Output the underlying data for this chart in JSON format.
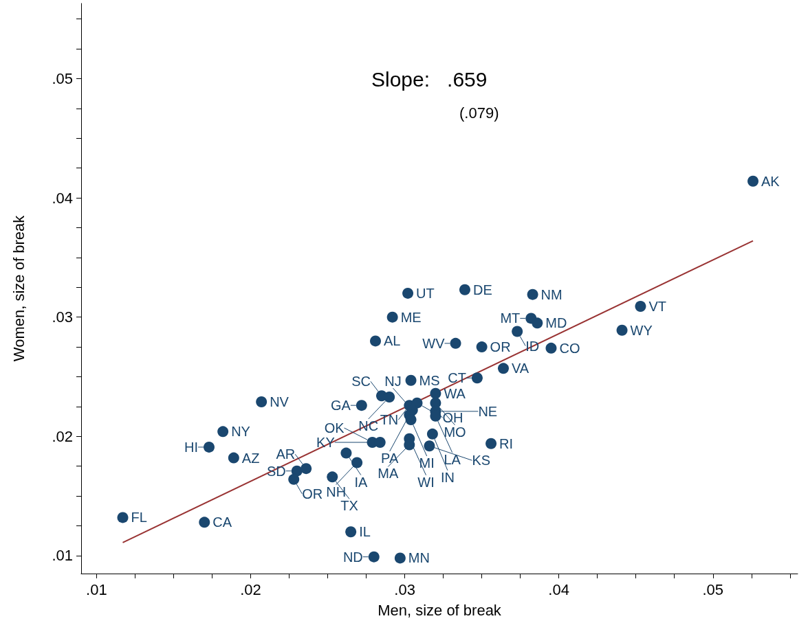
{
  "chart_data": {
    "type": "scatter",
    "xlabel": "Men, size of break",
    "ylabel": "Women, size of break",
    "annotations": [
      "Slope:   .659",
      "(.079)"
    ],
    "xlim": [
      0.009,
      0.0555
    ],
    "ylim": [
      0.0085,
      0.0563
    ],
    "xticks": [
      {
        "value": 0.01,
        "label": ".01"
      },
      {
        "value": 0.0125,
        "label": null
      },
      {
        "value": 0.015,
        "label": null
      },
      {
        "value": 0.0175,
        "label": null
      },
      {
        "value": 0.02,
        "label": ".02"
      },
      {
        "value": 0.0225,
        "label": null
      },
      {
        "value": 0.025,
        "label": null
      },
      {
        "value": 0.0275,
        "label": null
      },
      {
        "value": 0.03,
        "label": ".03"
      },
      {
        "value": 0.0325,
        "label": null
      },
      {
        "value": 0.035,
        "label": null
      },
      {
        "value": 0.0375,
        "label": null
      },
      {
        "value": 0.04,
        "label": ".04"
      },
      {
        "value": 0.0425,
        "label": null
      },
      {
        "value": 0.045,
        "label": null
      },
      {
        "value": 0.0475,
        "label": null
      },
      {
        "value": 0.05,
        "label": ".05"
      },
      {
        "value": 0.0525,
        "label": null
      },
      {
        "value": 0.055,
        "label": null
      }
    ],
    "yticks": [
      {
        "value": 0.01,
        "label": ".01"
      },
      {
        "value": 0.0125,
        "label": null
      },
      {
        "value": 0.015,
        "label": null
      },
      {
        "value": 0.0175,
        "label": null
      },
      {
        "value": 0.02,
        "label": ".02"
      },
      {
        "value": 0.0225,
        "label": null
      },
      {
        "value": 0.025,
        "label": null
      },
      {
        "value": 0.0275,
        "label": null
      },
      {
        "value": 0.03,
        "label": ".03"
      },
      {
        "value": 0.0325,
        "label": null
      },
      {
        "value": 0.035,
        "label": null
      },
      {
        "value": 0.0375,
        "label": null
      },
      {
        "value": 0.04,
        "label": ".04"
      },
      {
        "value": 0.0425,
        "label": null
      },
      {
        "value": 0.045,
        "label": null
      },
      {
        "value": 0.0475,
        "label": null
      },
      {
        "value": 0.05,
        "label": ".05"
      },
      {
        "value": 0.0525,
        "label": null
      },
      {
        "value": 0.055,
        "label": null
      }
    ],
    "grid": false,
    "marker": "circle",
    "series": [
      {
        "color": "#1a476f",
        "x": [
          0.0526,
          0.0453,
          0.0441,
          0.0383,
          0.0382,
          0.0386,
          0.0373,
          0.0395,
          0.035,
          0.0333,
          0.0339,
          0.0302,
          0.0292,
          0.0281,
          0.0364,
          0.0347,
          0.0304,
          0.032,
          0.0285,
          0.029,
          0.0272,
          0.0303,
          0.0308,
          0.0305,
          0.0303,
          0.0304,
          0.032,
          0.032,
          0.032,
          0.0318,
          0.0303,
          0.0303,
          0.0316,
          0.0279,
          0.0284,
          0.0356,
          0.0262,
          0.0269,
          0.023,
          0.0236,
          0.0228,
          0.0253,
          0.0189,
          0.0173,
          0.0182,
          0.0207,
          0.0117,
          0.017,
          0.0265,
          0.028,
          0.0297
        ],
        "values": [
          0.0414,
          0.0309,
          0.0289,
          0.0319,
          0.0299,
          0.0295,
          0.0288,
          0.0274,
          0.0275,
          0.0278,
          0.0323,
          0.032,
          0.03,
          0.028,
          0.0257,
          0.0249,
          0.0247,
          0.0236,
          0.0234,
          0.0233,
          0.0226,
          0.0226,
          0.0228,
          0.0222,
          0.0218,
          0.0214,
          0.0228,
          0.0221,
          0.0217,
          0.0202,
          0.0198,
          0.0193,
          0.0192,
          0.0195,
          0.0195,
          0.0194,
          0.0186,
          0.0178,
          0.0171,
          0.0173,
          0.0164,
          0.0166,
          0.0182,
          0.0191,
          0.0204,
          0.0229,
          0.0132,
          0.0128,
          0.012,
          0.0099,
          0.0098
        ],
        "value_labels": [
          "AK",
          "VT",
          "WY",
          "NM",
          "MT",
          "MD",
          "ID",
          "CO",
          "OR",
          "WV",
          "DE",
          "UT",
          "ME",
          "AL",
          "VA",
          "CT",
          "MS",
          "WA",
          "SC",
          "NC",
          "GA",
          "TN",
          "OH",
          "NJ",
          "PA",
          "MI",
          "MO",
          "NE",
          "LA",
          "IN",
          "WI",
          "MA",
          "KS",
          "OK",
          "KY",
          "RI",
          "IA",
          "NH",
          "SD",
          "AR",
          "OR",
          "TX",
          "AZ",
          "HI",
          "NY",
          "NV",
          "FL",
          "CA",
          "IL",
          "ND",
          "MN"
        ]
      },
      {
        "type": "line",
        "color": "#993333",
        "marker": "none",
        "line_style": "solid",
        "x": [
          0.0117,
          0.0526
        ],
        "values": [
          0.0111,
          0.0364
        ]
      }
    ]
  }
}
